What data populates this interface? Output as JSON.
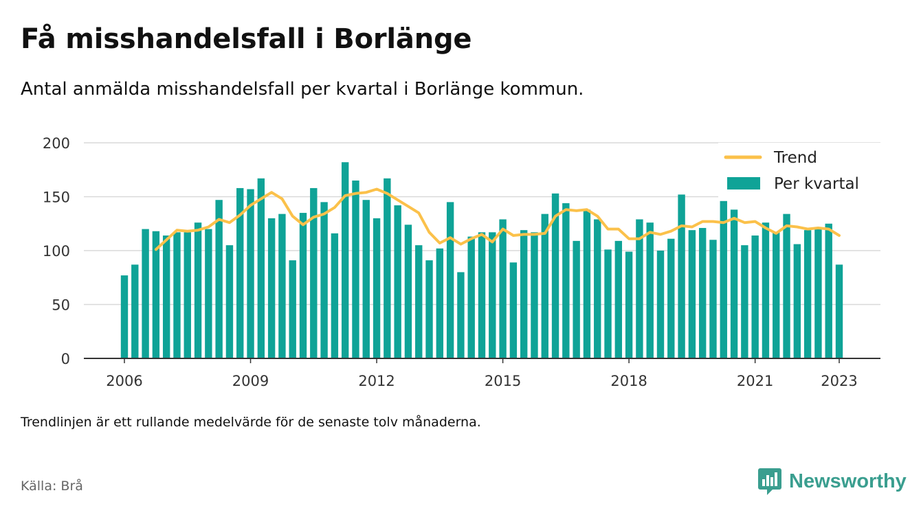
{
  "title": "Få misshandelsfall i Borlänge",
  "subtitle": "Antal anmälda misshandelsfall per kvartal i Borlänge kommun.",
  "footnote": "Trendlinjen är ett rullande medelvärde för de senaste tolv månaderna.",
  "source": "Källa: Brå",
  "brand": {
    "name": "Newsworthy",
    "icon": "newsworthy-logo-icon",
    "color": "#3a9e8f"
  },
  "chart_data": {
    "type": "bar",
    "x_start": 2006,
    "x_step": 0.25,
    "x_ticks": [
      "2006",
      "2009",
      "2012",
      "2015",
      "2018",
      "2021",
      "2023"
    ],
    "y_ticks": [
      "0",
      "50",
      "100",
      "150",
      "200"
    ],
    "ylim": [
      0,
      200
    ],
    "grid": true,
    "legend_position": "top-right",
    "series": [
      {
        "name": "Per kvartal",
        "type": "bar",
        "color": "#0fa397",
        "values": [
          77,
          87,
          120,
          118,
          114,
          117,
          117,
          126,
          120,
          147,
          105,
          158,
          157,
          167,
          130,
          134,
          91,
          135,
          158,
          145,
          116,
          182,
          165,
          147,
          130,
          167,
          142,
          124,
          105,
          91,
          102,
          145,
          80,
          113,
          117,
          117,
          129,
          89,
          119,
          117,
          134,
          153,
          144,
          109,
          138,
          129,
          101,
          109,
          99,
          129,
          126,
          100,
          111,
          152,
          119,
          121,
          110,
          146,
          138,
          105,
          114,
          126,
          117,
          134,
          106,
          119,
          120,
          125,
          87
        ]
      },
      {
        "name": "Trend",
        "type": "line",
        "color": "#fbc14a",
        "start_index": 3,
        "values": [
          101,
          110,
          119,
          118,
          119,
          122,
          129,
          126,
          133,
          142,
          148,
          154,
          148,
          132,
          124,
          131,
          134,
          140,
          151,
          153,
          154,
          157,
          153,
          147,
          141,
          135,
          117,
          107,
          112,
          106,
          111,
          115,
          108,
          120,
          114,
          115,
          115,
          116,
          132,
          138,
          137,
          138,
          132,
          120,
          120,
          111,
          111,
          117,
          115,
          118,
          123,
          122,
          127,
          127,
          126,
          130,
          126,
          127,
          121,
          116,
          123,
          122,
          120,
          121,
          120,
          114
        ]
      }
    ]
  }
}
